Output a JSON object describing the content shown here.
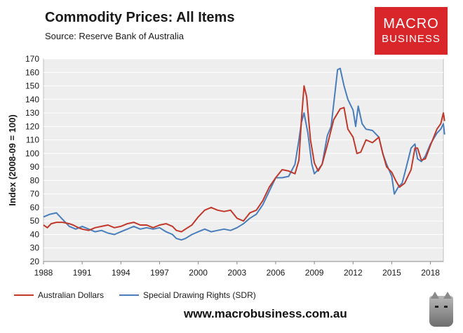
{
  "header": {
    "title": "Commodity Prices: All Items",
    "subtitle": "Source: Reserve Bank of Australia"
  },
  "logo": {
    "line1": "MACRO",
    "line2": "BUSINESS"
  },
  "footer": {
    "website": "www.macrobusiness.com.au"
  },
  "colors": {
    "aud": "#c0392b",
    "sdr": "#4a7ebb",
    "plot_bg": "#eeeeee",
    "grid": "#ffffff"
  },
  "chart_data": {
    "type": "line",
    "title": "Commodity Prices: All Items",
    "xlabel": "",
    "ylabel": "Index (2008-09 = 100)",
    "xlim": [
      1988,
      2019
    ],
    "ylim": [
      20,
      170
    ],
    "y_ticks": [
      20,
      30,
      40,
      50,
      60,
      70,
      80,
      90,
      100,
      110,
      120,
      130,
      140,
      150,
      160,
      170
    ],
    "x_ticks": [
      1988,
      1991,
      1994,
      1997,
      2000,
      2003,
      2006,
      2009,
      2012,
      2015,
      2018
    ],
    "grid": true,
    "legend_position": "bottom",
    "series": [
      {
        "name": "Australian Dollars",
        "points": [
          [
            1988.0,
            47
          ],
          [
            1988.3,
            45
          ],
          [
            1988.6,
            48
          ],
          [
            1989.0,
            49
          ],
          [
            1989.5,
            49
          ],
          [
            1990.0,
            48
          ],
          [
            1990.3,
            47
          ],
          [
            1990.7,
            45
          ],
          [
            1991.0,
            44
          ],
          [
            1991.5,
            43
          ],
          [
            1992.0,
            45
          ],
          [
            1992.5,
            46
          ],
          [
            1993.0,
            47
          ],
          [
            1993.5,
            45
          ],
          [
            1994.0,
            46
          ],
          [
            1994.5,
            48
          ],
          [
            1995.0,
            49
          ],
          [
            1995.5,
            47
          ],
          [
            1996.0,
            47
          ],
          [
            1996.5,
            45
          ],
          [
            1997.0,
            47
          ],
          [
            1997.5,
            48
          ],
          [
            1998.0,
            46
          ],
          [
            1998.3,
            43
          ],
          [
            1998.7,
            42
          ],
          [
            1999.0,
            44
          ],
          [
            1999.5,
            47
          ],
          [
            2000.0,
            53
          ],
          [
            2000.5,
            58
          ],
          [
            2001.0,
            60
          ],
          [
            2001.5,
            58
          ],
          [
            2002.0,
            57
          ],
          [
            2002.5,
            58
          ],
          [
            2003.0,
            52
          ],
          [
            2003.5,
            50
          ],
          [
            2004.0,
            56
          ],
          [
            2004.5,
            58
          ],
          [
            2005.0,
            65
          ],
          [
            2005.5,
            75
          ],
          [
            2006.0,
            82
          ],
          [
            2006.5,
            88
          ],
          [
            2007.0,
            87
          ],
          [
            2007.5,
            85
          ],
          [
            2007.8,
            95
          ],
          [
            2008.0,
            125
          ],
          [
            2008.2,
            150
          ],
          [
            2008.4,
            142
          ],
          [
            2008.7,
            110
          ],
          [
            2009.0,
            93
          ],
          [
            2009.3,
            87
          ],
          [
            2009.6,
            92
          ],
          [
            2010.0,
            106
          ],
          [
            2010.5,
            125
          ],
          [
            2011.0,
            133
          ],
          [
            2011.3,
            134
          ],
          [
            2011.6,
            118
          ],
          [
            2012.0,
            112
          ],
          [
            2012.3,
            100
          ],
          [
            2012.6,
            101
          ],
          [
            2013.0,
            110
          ],
          [
            2013.5,
            108
          ],
          [
            2014.0,
            112
          ],
          [
            2014.3,
            100
          ],
          [
            2014.6,
            90
          ],
          [
            2015.0,
            86
          ],
          [
            2015.3,
            80
          ],
          [
            2015.6,
            75
          ],
          [
            2016.0,
            78
          ],
          [
            2016.5,
            88
          ],
          [
            2016.8,
            104
          ],
          [
            2017.0,
            104
          ],
          [
            2017.3,
            95
          ],
          [
            2017.6,
            96
          ],
          [
            2018.0,
            106
          ],
          [
            2018.5,
            118
          ],
          [
            2018.8,
            122
          ],
          [
            2019.0,
            130
          ],
          [
            2019.1,
            124
          ]
        ]
      },
      {
        "name": "Special Drawing Rights (SDR)",
        "points": [
          [
            1988.0,
            53
          ],
          [
            1988.5,
            55
          ],
          [
            1989.0,
            56
          ],
          [
            1989.3,
            53
          ],
          [
            1989.6,
            50
          ],
          [
            1990.0,
            46
          ],
          [
            1990.5,
            44
          ],
          [
            1991.0,
            46
          ],
          [
            1991.5,
            44
          ],
          [
            1992.0,
            42
          ],
          [
            1992.5,
            43
          ],
          [
            1993.0,
            41
          ],
          [
            1993.5,
            40
          ],
          [
            1994.0,
            42
          ],
          [
            1994.5,
            44
          ],
          [
            1995.0,
            46
          ],
          [
            1995.5,
            44
          ],
          [
            1996.0,
            45
          ],
          [
            1996.5,
            44
          ],
          [
            1997.0,
            45
          ],
          [
            1997.5,
            42
          ],
          [
            1998.0,
            40
          ],
          [
            1998.3,
            37
          ],
          [
            1998.7,
            36
          ],
          [
            1999.0,
            37
          ],
          [
            1999.5,
            40
          ],
          [
            2000.0,
            42
          ],
          [
            2000.5,
            44
          ],
          [
            2001.0,
            42
          ],
          [
            2001.5,
            43
          ],
          [
            2002.0,
            44
          ],
          [
            2002.5,
            43
          ],
          [
            2003.0,
            45
          ],
          [
            2003.5,
            48
          ],
          [
            2004.0,
            52
          ],
          [
            2004.5,
            55
          ],
          [
            2005.0,
            62
          ],
          [
            2005.5,
            72
          ],
          [
            2006.0,
            82
          ],
          [
            2006.5,
            82
          ],
          [
            2007.0,
            83
          ],
          [
            2007.5,
            92
          ],
          [
            2007.8,
            110
          ],
          [
            2008.0,
            123
          ],
          [
            2008.2,
            130
          ],
          [
            2008.5,
            115
          ],
          [
            2008.8,
            92
          ],
          [
            2009.0,
            85
          ],
          [
            2009.3,
            88
          ],
          [
            2009.6,
            92
          ],
          [
            2010.0,
            113
          ],
          [
            2010.3,
            120
          ],
          [
            2010.6,
            145
          ],
          [
            2010.8,
            162
          ],
          [
            2011.0,
            163
          ],
          [
            2011.3,
            150
          ],
          [
            2011.6,
            140
          ],
          [
            2012.0,
            132
          ],
          [
            2012.2,
            120
          ],
          [
            2012.4,
            135
          ],
          [
            2012.7,
            122
          ],
          [
            2013.0,
            118
          ],
          [
            2013.5,
            117
          ],
          [
            2014.0,
            112
          ],
          [
            2014.3,
            100
          ],
          [
            2014.6,
            92
          ],
          [
            2015.0,
            83
          ],
          [
            2015.2,
            70
          ],
          [
            2015.5,
            75
          ],
          [
            2015.8,
            78
          ],
          [
            2016.0,
            85
          ],
          [
            2016.5,
            104
          ],
          [
            2016.8,
            107
          ],
          [
            2017.0,
            96
          ],
          [
            2017.3,
            94
          ],
          [
            2017.6,
            98
          ],
          [
            2018.0,
            107
          ],
          [
            2018.5,
            115
          ],
          [
            2018.8,
            118
          ],
          [
            2019.0,
            122
          ],
          [
            2019.1,
            114
          ]
        ]
      }
    ]
  }
}
